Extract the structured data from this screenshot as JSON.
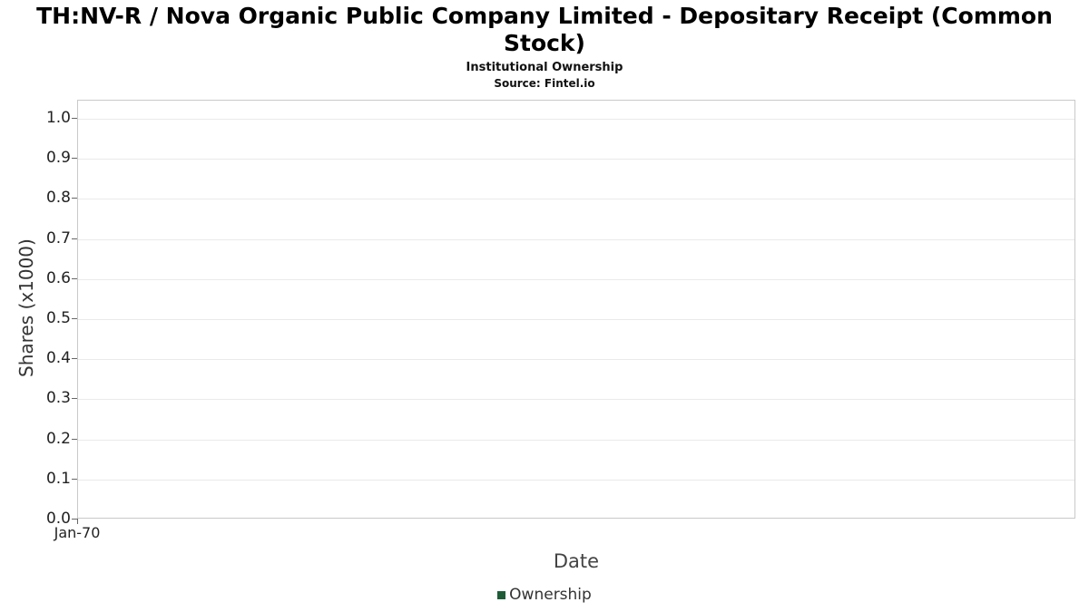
{
  "chart_data": {
    "type": "line",
    "title": "TH:NV-R / Nova Organic Public Company Limited - Depositary Receipt (Common Stock)",
    "subtitle": "Institutional Ownership",
    "source_note": "Source: Fintel.io",
    "xlabel": "Date",
    "ylabel": "Shares (x1000)",
    "ylim": [
      0.0,
      1.0
    ],
    "y_ticks": [
      "1.0",
      "0.9",
      "0.8",
      "0.7",
      "0.6",
      "0.5",
      "0.4",
      "0.3",
      "0.2",
      "0.1",
      "0.0"
    ],
    "x_ticks": [
      "Jan-70"
    ],
    "grid": true,
    "legend_position": "bottom",
    "series": [
      {
        "name": "Ownership",
        "color": "#1e5c38",
        "x": [],
        "values": []
      }
    ],
    "colors": {
      "axis_border": "#c9c9c9",
      "gridline": "#eaeaea",
      "legend_marker": "#1e5c38"
    }
  }
}
